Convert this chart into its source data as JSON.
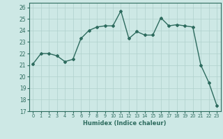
{
  "x": [
    0,
    1,
    2,
    3,
    4,
    5,
    6,
    7,
    8,
    9,
    10,
    11,
    12,
    13,
    14,
    15,
    16,
    17,
    18,
    19,
    20,
    21,
    22,
    23
  ],
  "y": [
    21.1,
    22.0,
    22.0,
    21.8,
    21.3,
    21.5,
    23.3,
    24.0,
    24.3,
    24.4,
    24.4,
    25.7,
    23.3,
    23.9,
    23.6,
    23.6,
    25.1,
    24.4,
    24.5,
    24.4,
    24.3,
    21.0,
    19.5,
    17.5
  ],
  "xlabel": "Humidex (Indice chaleur)",
  "xlim": [
    -0.5,
    23.5
  ],
  "ylim": [
    17,
    26.4
  ],
  "yticks": [
    17,
    18,
    19,
    20,
    21,
    22,
    23,
    24,
    25,
    26
  ],
  "xticks": [
    0,
    1,
    2,
    3,
    4,
    5,
    6,
    7,
    8,
    9,
    10,
    11,
    12,
    13,
    14,
    15,
    16,
    17,
    18,
    19,
    20,
    21,
    22,
    23
  ],
  "line_color": "#2d6b5e",
  "bg_color": "#cde8e5",
  "grid_color": "#b0d0cc",
  "marker": "D",
  "marker_size": 2.0,
  "line_width": 1.0
}
